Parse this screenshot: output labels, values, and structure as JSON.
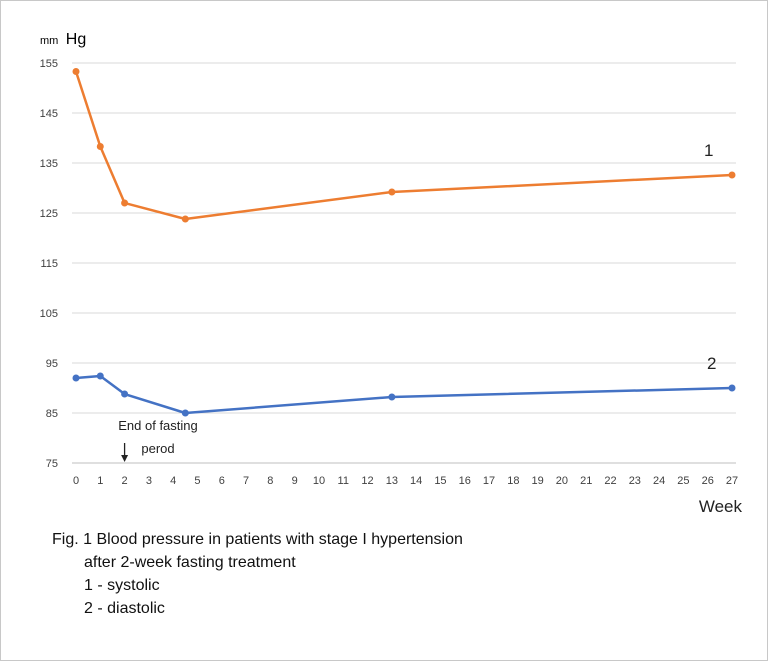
{
  "chart_data": {
    "type": "line",
    "ylabel_prefix": "mm",
    "ylabel": "Hg",
    "xlabel": "Week",
    "ylim": [
      75,
      155
    ],
    "y_ticks": [
      75,
      85,
      95,
      105,
      115,
      125,
      135,
      145,
      155
    ],
    "xlim": [
      0,
      27
    ],
    "x_ticks": [
      0,
      1,
      2,
      3,
      4,
      5,
      6,
      7,
      8,
      9,
      10,
      11,
      12,
      13,
      14,
      15,
      16,
      17,
      18,
      19,
      20,
      21,
      22,
      23,
      24,
      25,
      26,
      27
    ],
    "grid": true,
    "series": [
      {
        "name": "1",
        "color": "#ed7d31",
        "x": [
          0,
          1,
          2,
          4.5,
          13,
          27
        ],
        "y": [
          153.3,
          138.3,
          127.0,
          123.8,
          129.2,
          132.6
        ]
      },
      {
        "name": "2",
        "color": "#4472c4",
        "x": [
          0,
          1,
          2,
          4.5,
          13,
          27
        ],
        "y": [
          92.0,
          92.4,
          88.8,
          85.0,
          88.2,
          90.0
        ]
      }
    ],
    "annotation": {
      "x": 2,
      "lines": [
        "End of fasting",
        "perod"
      ]
    }
  },
  "caption": {
    "line1": "Fig. 1 Blood pressure in patients with stage I hypertension",
    "line2": "after 2-week fasting treatment",
    "line3": "1 - systolic",
    "line4": "2 - diastolic"
  }
}
